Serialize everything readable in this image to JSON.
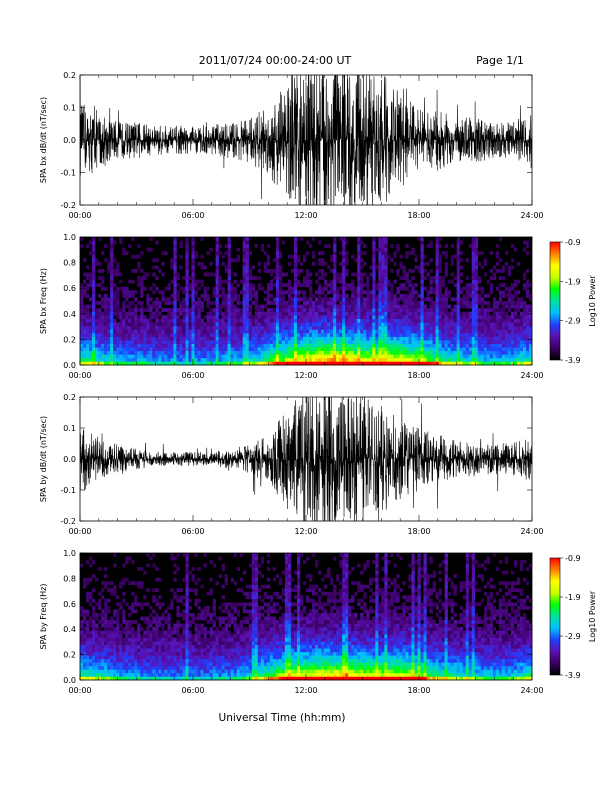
{
  "header": {
    "title": "2011/07/24  00:00-24:00 UT",
    "page": "Page 1/1"
  },
  "x_title": "Universal Time (hh:mm)",
  "colors": {
    "trace": "#000000",
    "spectrogram_background": "#000000",
    "colorbar": [
      "#000000",
      "#3a0060",
      "#5a10b0",
      "#2040ff",
      "#00c0ff",
      "#00e0a0",
      "#00ff00",
      "#c8ff00",
      "#ffff00",
      "#ff8000",
      "#ff0000"
    ]
  },
  "chart_data": [
    {
      "type": "line",
      "panel": "SPA bx dB/dt",
      "ylabel": "SPA bx dB/dt (nT/sec)",
      "xlim": [
        0,
        24
      ],
      "ylim": [
        -0.2,
        0.2
      ],
      "x_ticks": [
        "00:00",
        "06:00",
        "12:00",
        "18:00",
        "24:00"
      ],
      "y_ticks": [
        "-0.2",
        "-0.1",
        "0.0",
        "0.1",
        "0.2"
      ],
      "series": [
        {
          "x": [
            0,
            1,
            2,
            3,
            4,
            5,
            6,
            7,
            8,
            9,
            10,
            11,
            12,
            12.5,
            13,
            13.5,
            14,
            15,
            16,
            17,
            18,
            19,
            20,
            21,
            22,
            23,
            24
          ],
          "envelope": [
            0.1,
            0.08,
            0.05,
            0.05,
            0.04,
            0.04,
            0.04,
            0.04,
            0.05,
            0.06,
            0.1,
            0.17,
            0.22,
            0.25,
            0.25,
            0.25,
            0.22,
            0.2,
            0.18,
            0.13,
            0.08,
            0.08,
            0.06,
            0.06,
            0.05,
            0.05,
            0.08
          ]
        }
      ]
    },
    {
      "type": "heatmap",
      "panel": "SPA bx Freq",
      "ylabel": "SPA bx Freq (Hz)",
      "xlim": [
        0,
        24
      ],
      "ylim": [
        0,
        1.0
      ],
      "x_ticks": [
        "00:00",
        "06:00",
        "12:00",
        "18:00",
        "24:00"
      ],
      "y_ticks": [
        "0.0",
        "0.2",
        "0.4",
        "0.6",
        "0.8",
        "1.0"
      ],
      "colorbar": {
        "label": "Log10 Power",
        "range": [
          -3.9,
          -0.9
        ],
        "ticks": [
          "-0.9",
          "-1.9",
          "-2.9",
          "-3.9"
        ]
      },
      "activity": {
        "x": [
          0,
          1,
          2,
          3,
          4,
          5,
          6,
          7,
          8,
          9,
          10,
          11,
          12,
          13,
          14,
          15,
          16,
          17,
          18,
          19,
          20,
          21,
          22,
          23,
          24
        ],
        "level": [
          0.4,
          0.35,
          0.25,
          0.25,
          0.22,
          0.2,
          0.2,
          0.22,
          0.25,
          0.3,
          0.45,
          0.6,
          0.7,
          0.8,
          0.75,
          0.7,
          0.65,
          0.7,
          0.6,
          0.45,
          0.35,
          0.3,
          0.25,
          0.3,
          0.4
        ]
      }
    },
    {
      "type": "line",
      "panel": "SPA by dB/dt",
      "ylabel": "SPA by dB/dt (nT/sec)",
      "xlim": [
        0,
        24
      ],
      "ylim": [
        -0.2,
        0.2
      ],
      "x_ticks": [
        "00:00",
        "06:00",
        "12:00",
        "18:00",
        "24:00"
      ],
      "y_ticks": [
        "-0.2",
        "-0.1",
        "0.0",
        "0.1",
        "0.2"
      ],
      "series": [
        {
          "x": [
            0,
            1,
            2,
            3,
            4,
            5,
            6,
            7,
            8,
            9,
            10,
            11,
            12,
            12.5,
            13,
            13.5,
            14,
            15,
            16,
            17,
            18,
            19,
            20,
            21,
            22,
            23,
            24
          ],
          "envelope": [
            0.1,
            0.06,
            0.04,
            0.03,
            0.02,
            0.02,
            0.02,
            0.02,
            0.03,
            0.04,
            0.07,
            0.14,
            0.22,
            0.25,
            0.25,
            0.22,
            0.2,
            0.18,
            0.15,
            0.12,
            0.09,
            0.07,
            0.05,
            0.05,
            0.04,
            0.05,
            0.07
          ]
        }
      ]
    },
    {
      "type": "heatmap",
      "panel": "SPA by Freq",
      "ylabel": "SPA by Freq (Hz)",
      "xlim": [
        0,
        24
      ],
      "ylim": [
        0,
        1.0
      ],
      "x_ticks": [
        "00:00",
        "06:00",
        "12:00",
        "18:00",
        "24:00"
      ],
      "y_ticks": [
        "0.0",
        "0.2",
        "0.4",
        "0.6",
        "0.8",
        "1.0"
      ],
      "colorbar": {
        "label": "Log10 Power",
        "range": [
          -3.9,
          -0.9
        ],
        "ticks": [
          "-0.9",
          "-1.9",
          "-2.9",
          "-3.9"
        ]
      },
      "activity": {
        "x": [
          0,
          1,
          2,
          3,
          4,
          5,
          6,
          7,
          8,
          9,
          10,
          11,
          12,
          13,
          14,
          15,
          16,
          17,
          18,
          19,
          20,
          21,
          22,
          23,
          24
        ],
        "level": [
          0.4,
          0.35,
          0.25,
          0.22,
          0.2,
          0.18,
          0.18,
          0.2,
          0.22,
          0.28,
          0.45,
          0.6,
          0.65,
          0.7,
          0.7,
          0.65,
          0.6,
          0.65,
          0.55,
          0.42,
          0.35,
          0.3,
          0.25,
          0.3,
          0.4
        ]
      }
    }
  ]
}
